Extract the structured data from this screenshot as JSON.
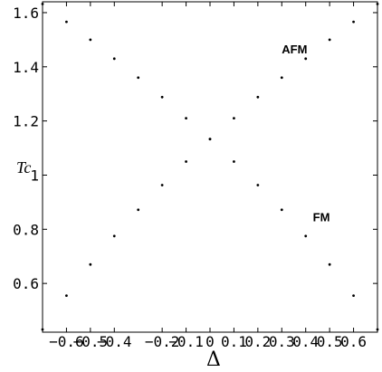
{
  "chart_data": {
    "type": "scatter",
    "xlabel": "Δ",
    "ylabel": "Tc",
    "xlim": [
      -0.7,
      0.7
    ],
    "ylim": [
      0.42,
      1.64
    ],
    "x_ticks": [
      -0.6,
      -0.5,
      -0.4,
      -0.2,
      -0.1,
      0,
      0.1,
      0.2,
      0.3,
      0.4,
      0.5,
      0.6
    ],
    "x_tick_labels": [
      "−0.6",
      "−0.5",
      "−0.4",
      "−0.2",
      "−0.1",
      "0",
      "0.1",
      "0.2",
      "0.3",
      "0.4",
      "0.5",
      "0.6"
    ],
    "y_ticks": [
      0.6,
      0.8,
      1,
      1.2,
      1.4,
      1.6
    ],
    "y_tick_labels": [
      "0.6",
      "0.8",
      "1",
      "1.2",
      "1.4",
      "1.6"
    ],
    "grid": false,
    "series": [
      {
        "name": "AFM",
        "x": [
          -0.7,
          -0.6,
          -0.5,
          -0.4,
          -0.3,
          -0.2,
          -0.1,
          0.0,
          0.1,
          0.2,
          0.3,
          0.4,
          0.5,
          0.6,
          0.7
        ],
        "y": [
          0.43,
          0.555,
          0.67,
          0.775,
          0.872,
          0.963,
          1.05,
          1.133,
          1.21,
          1.288,
          1.36,
          1.43,
          1.5,
          1.566,
          1.632
        ]
      },
      {
        "name": "FM",
        "x": [
          -0.7,
          -0.6,
          -0.5,
          -0.4,
          -0.3,
          -0.2,
          -0.1,
          0.0,
          0.1,
          0.2,
          0.3,
          0.4,
          0.5,
          0.6,
          0.7
        ],
        "y": [
          1.632,
          1.566,
          1.5,
          1.43,
          1.36,
          1.288,
          1.21,
          1.133,
          1.05,
          0.963,
          0.872,
          0.775,
          0.67,
          0.555,
          0.43
        ]
      }
    ],
    "annotations": [
      {
        "text": "AFM",
        "x": 0.3,
        "y": 1.45
      },
      {
        "text": "FM",
        "x": 0.43,
        "y": 0.83
      }
    ]
  }
}
